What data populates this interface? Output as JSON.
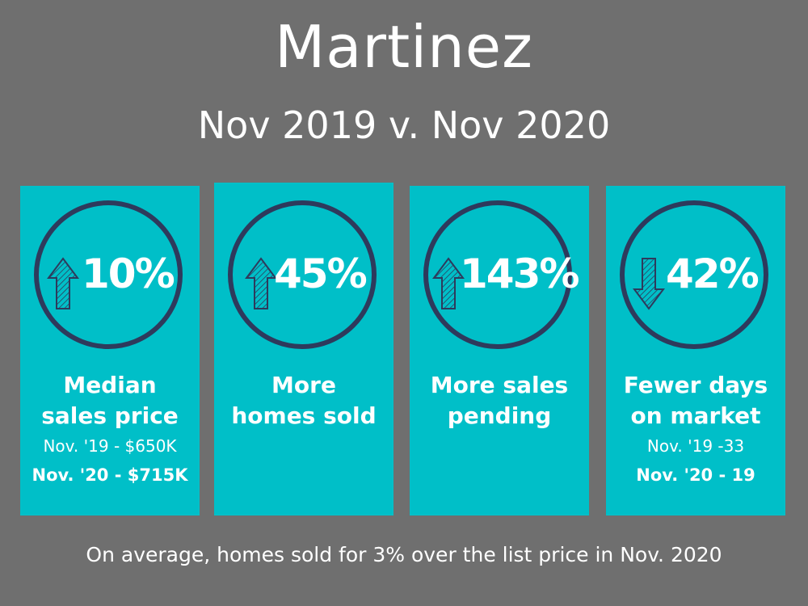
{
  "header": {
    "title": "Martinez",
    "subtitle": "Nov 2019 v. Nov 2020"
  },
  "colors": {
    "background": "#6f6f6f",
    "card": "#00bfc8",
    "circle": "#2e3a5c",
    "text": "#ffffff"
  },
  "cards": [
    {
      "icon": "arrow-up-icon",
      "percent": "10%",
      "label_line1": "Median",
      "label_line2": "sales price",
      "prev": "Nov. '19 - $650K",
      "curr": "Nov. '20 - $715K"
    },
    {
      "icon": "arrow-up-icon",
      "percent": "45%",
      "label_line1": "More",
      "label_line2": "homes sold"
    },
    {
      "icon": "arrow-up-icon",
      "percent": "143%",
      "label_line1": "More sales",
      "label_line2": "pending"
    },
    {
      "icon": "arrow-down-icon",
      "percent": "42%",
      "label_line1": "Fewer days",
      "label_line2": "on market",
      "prev": "Nov. '19 -33",
      "curr": "Nov. '20 - 19"
    }
  ],
  "footer": "On average, homes sold for 3% over the list price in Nov. 2020"
}
